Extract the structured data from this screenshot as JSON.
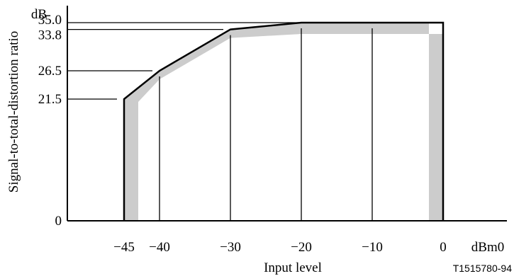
{
  "chart_data": {
    "type": "line",
    "ylabel": "Signal-to-total-distortion ratio",
    "yunit": "dB",
    "xlabel": "Input level",
    "xunit": "dBm0",
    "xlim": [
      -53,
      9
    ],
    "ylim": [
      0,
      37.5
    ],
    "x_ticks": [
      {
        "value": -45,
        "label": "−45"
      },
      {
        "value": -40,
        "label": "−40"
      },
      {
        "value": -30,
        "label": "−30"
      },
      {
        "value": -20,
        "label": "−20"
      },
      {
        "value": -10,
        "label": "−10"
      },
      {
        "value": 0,
        "label": "0"
      }
    ],
    "y_ticks": [
      {
        "value": 0,
        "label": "0"
      },
      {
        "value": 21.5,
        "label": "21.5"
      },
      {
        "value": 26.5,
        "label": "26.5"
      },
      {
        "value": 33.8,
        "label": "33.8"
      },
      {
        "value": 35.0,
        "label": "35.0"
      }
    ],
    "limit_line": {
      "x": [
        -45,
        -45,
        -40,
        -30,
        -20,
        0,
        0
      ],
      "y": [
        0,
        21.5,
        26.5,
        33.8,
        35.0,
        35.0,
        0
      ]
    },
    "shaded_band": {
      "x": [
        -45,
        -45,
        -40,
        -30,
        -20,
        -2,
        -2,
        0,
        0,
        -20,
        -30,
        -40,
        -43,
        -43
      ],
      "y": [
        0,
        21.5,
        26.5,
        33.8,
        35.0,
        35.0,
        0,
        0,
        33.0,
        33.0,
        32.3,
        25.0,
        21.0,
        0
      ]
    },
    "grid": false,
    "legend": "none"
  },
  "figure_id": "T1515780-94",
  "colors": {
    "line": "#000000",
    "band": "#cccccc",
    "background": "#ffffff"
  }
}
